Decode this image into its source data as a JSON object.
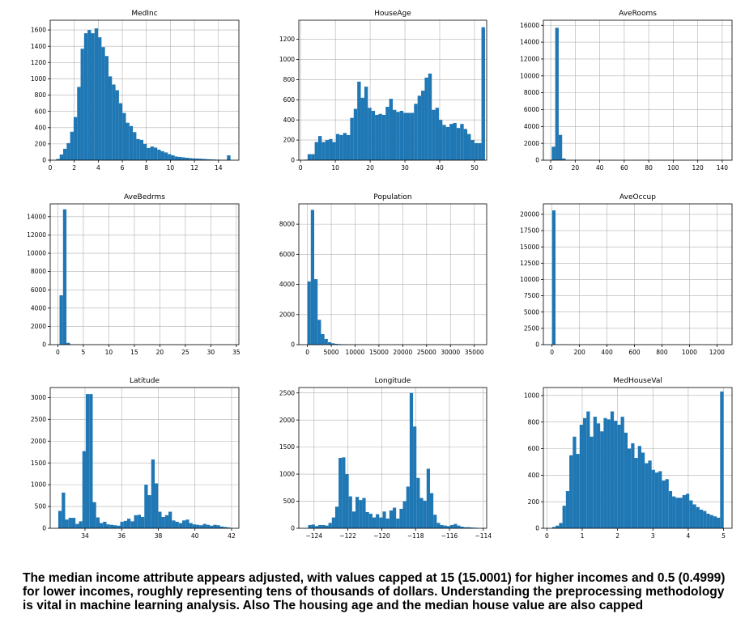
{
  "caption": "The median income attribute appears adjusted, with values capped at 15 (15.0001) for higher incomes and 0.5 (0.4999) for lower incomes, roughly representing tens of thousands of dollars. Understanding the preprocessing methodology is vital in machine learning analysis. Also The housing age and the median house value are also capped",
  "colors": {
    "bar": "#1f77b4",
    "grid": "#b0b0b0",
    "axis": "#000000"
  },
  "chart_data": [
    {
      "type": "bar",
      "title": "MedInc",
      "grid": true,
      "xlim": [
        0,
        15.7
      ],
      "ylim": [
        0,
        1720
      ],
      "xticks": [
        0,
        2,
        4,
        6,
        8,
        10,
        12,
        14
      ],
      "yticks": [
        0,
        200,
        400,
        600,
        800,
        1000,
        1200,
        1400,
        1600
      ],
      "bin_start": 0.5,
      "bin_width": 0.29,
      "values": [
        15,
        70,
        140,
        210,
        350,
        530,
        900,
        1370,
        1560,
        1600,
        1560,
        1620,
        1510,
        1390,
        1280,
        1030,
        930,
        860,
        700,
        580,
        460,
        420,
        345,
        260,
        250,
        200,
        150,
        168,
        155,
        130,
        110,
        95,
        75,
        60,
        45,
        40,
        35,
        30,
        25,
        22,
        20,
        18,
        15,
        12,
        10,
        8,
        6,
        5,
        4,
        60
      ]
    },
    {
      "type": "bar",
      "title": "HouseAge",
      "grid": true,
      "xlim": [
        -0.5,
        53.5
      ],
      "ylim": [
        0,
        1390
      ],
      "xticks": [
        0,
        10,
        20,
        30,
        40,
        50
      ],
      "yticks": [
        0,
        200,
        400,
        600,
        800,
        1000,
        1200
      ],
      "bin_start": 1,
      "bin_width": 1.02,
      "values": [
        5,
        60,
        60,
        180,
        240,
        180,
        200,
        210,
        180,
        260,
        250,
        270,
        250,
        420,
        510,
        780,
        620,
        730,
        520,
        490,
        450,
        460,
        450,
        530,
        610,
        500,
        480,
        490,
        470,
        470,
        470,
        560,
        640,
        690,
        820,
        860,
        500,
        520,
        400,
        350,
        330,
        360,
        370,
        320,
        360,
        310,
        260,
        200,
        170,
        170,
        1320
      ]
    },
    {
      "type": "bar",
      "title": "AveRooms",
      "grid": true,
      "xlim": [
        -6,
        148
      ],
      "ylim": [
        0,
        16600
      ],
      "xticks": [
        0,
        20,
        40,
        60,
        80,
        100,
        120,
        140
      ],
      "yticks": [
        0,
        2000,
        4000,
        6000,
        8000,
        10000,
        12000,
        14000,
        16000
      ],
      "bin_start": 0.85,
      "bin_width": 2.83,
      "values": [
        1600,
        15700,
        3000,
        200,
        30,
        10,
        5,
        3,
        2,
        1,
        1,
        1,
        1,
        1,
        1,
        1,
        1,
        1,
        1,
        1,
        1,
        1,
        1,
        1,
        1,
        1,
        1,
        1,
        1,
        1,
        1,
        1,
        1,
        1,
        1,
        1,
        1,
        1,
        1,
        1,
        1,
        1,
        1,
        1,
        1,
        1,
        1,
        1,
        1,
        1
      ]
    },
    {
      "type": "bar",
      "title": "AveBedrms",
      "grid": true,
      "xlim": [
        -1.5,
        35.5
      ],
      "ylim": [
        0,
        15400
      ],
      "xticks": [
        0,
        5,
        10,
        15,
        20,
        25,
        30,
        35
      ],
      "yticks": [
        0,
        2000,
        4000,
        6000,
        8000,
        10000,
        12000,
        14000
      ],
      "bin_start": 0.33,
      "bin_width": 0.68,
      "values": [
        5400,
        14800,
        200,
        40,
        10,
        5,
        3,
        2,
        1,
        1,
        1,
        1,
        1,
        1,
        1,
        1,
        1,
        1,
        1,
        1,
        1,
        1,
        1,
        1,
        1,
        1,
        1,
        1,
        1,
        1,
        1,
        1,
        1,
        1,
        1,
        1,
        1,
        1,
        1,
        1,
        1,
        1,
        1,
        1,
        1,
        1,
        1,
        1,
        1,
        1
      ]
    },
    {
      "type": "bar",
      "title": "Population",
      "grid": true,
      "xlim": [
        -1800,
        37600
      ],
      "ylim": [
        0,
        9350
      ],
      "xticks": [
        0,
        5000,
        10000,
        15000,
        20000,
        25000,
        30000,
        35000
      ],
      "yticks": [
        0,
        2000,
        4000,
        6000,
        8000
      ],
      "bin_start": 3,
      "bin_width": 714,
      "values": [
        4200,
        8950,
        4350,
        1650,
        700,
        380,
        160,
        90,
        55,
        35,
        20,
        15,
        10,
        8,
        6,
        4,
        3,
        2,
        2,
        1,
        1,
        1,
        1,
        1,
        1,
        1,
        1,
        1,
        1,
        1,
        1,
        1,
        1,
        1,
        1,
        1,
        1,
        1,
        1,
        1,
        1,
        1,
        1,
        1,
        1,
        1,
        1,
        1,
        1,
        1
      ]
    },
    {
      "type": "bar",
      "title": "AveOccup",
      "grid": true,
      "xlim": [
        -63,
        1310
      ],
      "ylim": [
        0,
        21600
      ],
      "xticks": [
        0,
        200,
        400,
        600,
        800,
        1000,
        1200
      ],
      "yticks": [
        0,
        2500,
        5000,
        7500,
        10000,
        12500,
        15000,
        17500,
        20000
      ],
      "bin_start": 0.7,
      "bin_width": 24.8,
      "values": [
        20600,
        30,
        5,
        3,
        2,
        1,
        1,
        1,
        1,
        1,
        1,
        1,
        1,
        1,
        1,
        1,
        1,
        1,
        1,
        1,
        1,
        1,
        1,
        1,
        1,
        1,
        1,
        1,
        1,
        1,
        1,
        1,
        1,
        1,
        1,
        1,
        1,
        1,
        1,
        1,
        1,
        1,
        1,
        1,
        1,
        1,
        1,
        1,
        1,
        1
      ]
    },
    {
      "type": "bar",
      "title": "Latitude",
      "grid": true,
      "xlim": [
        32.1,
        42.4
      ],
      "ylim": [
        0,
        3230
      ],
      "xticks": [
        34,
        36,
        38,
        40,
        42
      ],
      "yticks": [
        0,
        500,
        1000,
        1500,
        2000,
        2500,
        3000
      ],
      "bin_start": 32.54,
      "bin_width": 0.188,
      "values": [
        400,
        820,
        200,
        240,
        240,
        100,
        160,
        1770,
        3080,
        3080,
        600,
        250,
        120,
        150,
        90,
        80,
        70,
        60,
        150,
        170,
        220,
        160,
        300,
        310,
        260,
        1000,
        760,
        1580,
        1030,
        380,
        260,
        300,
        380,
        180,
        150,
        120,
        180,
        200,
        120,
        90,
        80,
        70,
        100,
        80,
        60,
        80,
        70,
        40,
        30,
        20
      ]
    },
    {
      "type": "bar",
      "title": "Longitude",
      "grid": true,
      "xlim": [
        -124.9,
        -113.8
      ],
      "ylim": [
        0,
        2600
      ],
      "xticks": [
        -124,
        -122,
        -120,
        -118,
        -116,
        -114
      ],
      "yticks": [
        0,
        500,
        1000,
        1500,
        2000,
        2500
      ],
      "bin_start": -124.35,
      "bin_width": 0.2,
      "values": [
        60,
        70,
        40,
        60,
        60,
        50,
        100,
        200,
        400,
        1300,
        1310,
        1000,
        590,
        310,
        580,
        520,
        560,
        300,
        270,
        200,
        260,
        200,
        310,
        180,
        330,
        380,
        180,
        360,
        500,
        770,
        2500,
        1880,
        930,
        560,
        510,
        1100,
        650,
        250,
        100,
        60,
        50,
        40,
        60,
        80,
        50,
        30,
        20,
        20,
        15,
        10
      ]
    },
    {
      "type": "bar",
      "title": "MedHouseVal",
      "grid": true,
      "xlim": [
        -0.1,
        5.24
      ],
      "ylim": [
        0,
        1060
      ],
      "xticks": [
        0,
        1,
        2,
        3,
        4,
        5
      ],
      "yticks": [
        0,
        200,
        400,
        600,
        800,
        1000
      ],
      "bin_start": 0.15,
      "bin_width": 0.097,
      "values": [
        10,
        20,
        40,
        170,
        280,
        550,
        690,
        560,
        780,
        830,
        880,
        690,
        840,
        790,
        730,
        830,
        820,
        880,
        810,
        780,
        840,
        720,
        600,
        640,
        530,
        620,
        570,
        490,
        510,
        440,
        420,
        430,
        360,
        370,
        280,
        240,
        230,
        230,
        250,
        260,
        210,
        180,
        160,
        140,
        130,
        110,
        100,
        90,
        80,
        1030
      ]
    }
  ]
}
